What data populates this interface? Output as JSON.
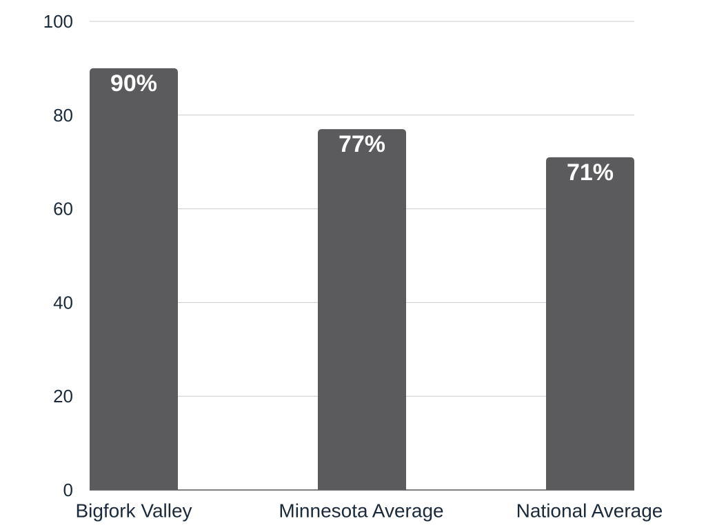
{
  "chart_data": {
    "type": "bar",
    "categories": [
      "Bigfork Valley",
      "Minnesota Average",
      "National Average"
    ],
    "values": [
      90,
      77,
      71
    ],
    "data_labels": [
      "90%",
      "77%",
      "71%"
    ],
    "title": "",
    "xlabel": "",
    "ylabel": "",
    "ylim": [
      0,
      100
    ],
    "yticks": [
      0,
      20,
      40,
      60,
      80,
      100
    ],
    "grid": true,
    "legend": "none",
    "colors": {
      "bar": "#5b5b5d",
      "grid": "#cccccc",
      "axis_text": "#1b2a3a",
      "data_label": "#ffffff"
    }
  }
}
